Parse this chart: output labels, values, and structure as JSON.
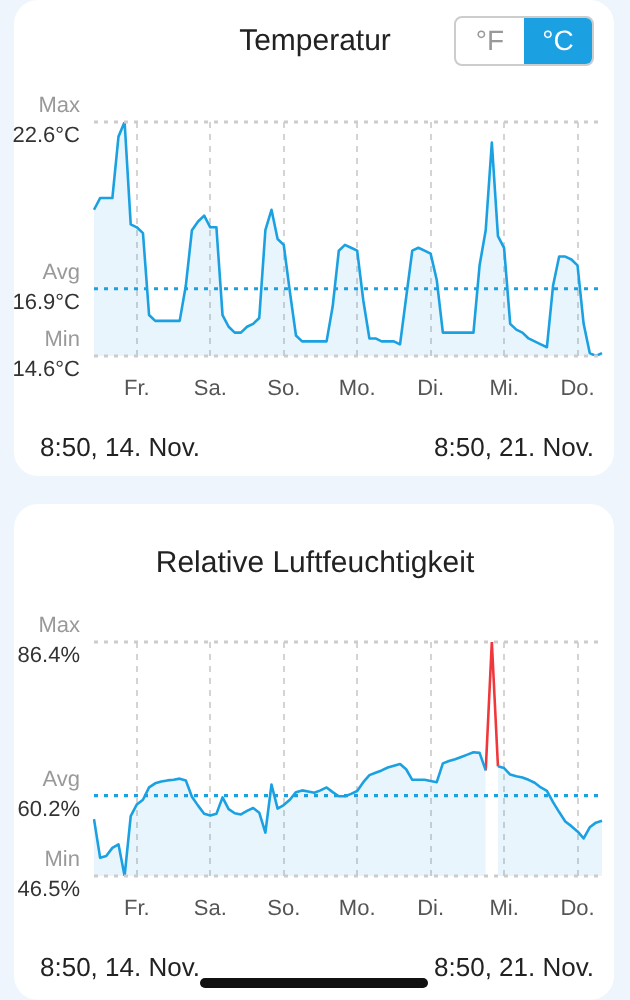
{
  "chart_data": [
    {
      "type": "area",
      "title": "Temperatur",
      "categories": [
        null,
        null,
        null,
        null,
        null,
        null,
        null,
        "Fr.",
        null,
        null,
        null,
        null,
        null,
        null,
        null,
        null,
        null,
        null,
        null,
        "Sa.",
        null,
        null,
        null,
        null,
        null,
        null,
        null,
        null,
        null,
        null,
        null,
        "So.",
        null,
        null,
        null,
        null,
        null,
        null,
        null,
        null,
        null,
        null,
        null,
        "Mo.",
        null,
        null,
        null,
        null,
        null,
        null,
        null,
        null,
        null,
        null,
        null,
        "Di.",
        null,
        null,
        null,
        null,
        null,
        null,
        null,
        null,
        null,
        null,
        null,
        "Mi.",
        null,
        null,
        null,
        null,
        null,
        null,
        null,
        null,
        null,
        null,
        null,
        "Do.",
        null,
        null,
        null,
        null
      ],
      "series": [
        {
          "color": "#1ba1e2",
          "values": [
            19.6,
            20.0,
            20.0,
            20.0,
            22.1,
            22.6,
            19.1,
            19.0,
            18.8,
            16.0,
            15.8,
            15.8,
            15.8,
            15.8,
            15.8,
            17.0,
            18.9,
            19.2,
            19.4,
            19.0,
            19.0,
            16.0,
            15.6,
            15.4,
            15.4,
            15.6,
            15.7,
            15.9,
            18.9,
            19.6,
            18.6,
            18.4,
            16.8,
            15.3,
            15.1,
            15.1,
            15.1,
            15.1,
            15.1,
            16.3,
            18.2,
            18.4,
            18.3,
            18.2,
            16.5,
            15.2,
            15.2,
            15.1,
            15.1,
            15.1,
            15.0,
            16.6,
            18.2,
            18.3,
            18.2,
            18.1,
            17.2,
            15.4,
            15.4,
            15.4,
            15.4,
            15.4,
            15.4,
            17.7,
            18.9,
            21.9,
            18.7,
            18.3,
            15.7,
            15.5,
            15.4,
            15.2,
            15.1,
            15.0,
            14.9,
            17.0,
            18.0,
            18.0,
            17.9,
            17.7,
            15.7,
            14.7,
            14.6,
            14.7
          ]
        }
      ],
      "ylim": [
        14.6,
        22.6
      ],
      "yticks": [
        {
          "value": 14.6,
          "label": "14.6°C"
        },
        {
          "value": 16.9,
          "label": "16.9°C"
        },
        {
          "value": 22.6,
          "label": "22.6°C"
        }
      ],
      "ref_lines": [
        {
          "axis": "y",
          "value": 22.6,
          "label": "Max",
          "color": "#cccccc",
          "line_style": "dotted"
        },
        {
          "axis": "y",
          "value": 16.9,
          "label": "Avg",
          "color": "#1ba1e2",
          "line_style": "dotted"
        },
        {
          "axis": "y",
          "value": 14.6,
          "label": "Min",
          "color": "#cccccc",
          "line_style": "dotted"
        }
      ],
      "grid": "x",
      "annotations": [
        "°F",
        "°C",
        "8:50, 14. Nov.",
        "8:50, 21. Nov."
      ]
    },
    {
      "type": "area",
      "title": "Relative Luftfeuchtigkeit",
      "categories": [
        null,
        null,
        null,
        null,
        null,
        null,
        null,
        "Fr.",
        null,
        null,
        null,
        null,
        null,
        null,
        null,
        null,
        null,
        null,
        null,
        "Sa.",
        null,
        null,
        null,
        null,
        null,
        null,
        null,
        null,
        null,
        null,
        null,
        "So.",
        null,
        null,
        null,
        null,
        null,
        null,
        null,
        null,
        null,
        null,
        null,
        "Mo.",
        null,
        null,
        null,
        null,
        null,
        null,
        null,
        null,
        null,
        null,
        null,
        "Di.",
        null,
        null,
        null,
        null,
        null,
        null,
        null,
        null,
        null,
        null,
        null,
        "Mi.",
        null,
        null,
        null,
        null,
        null,
        null,
        null,
        null,
        null,
        null,
        null,
        "Do.",
        null,
        null,
        null,
        null
      ],
      "series": [
        {
          "color": "#1ba1e2",
          "values": [
            56.2,
            49.6,
            49.9,
            51.3,
            51.9,
            46.5,
            56.7,
            58.7,
            59.5,
            61.6,
            62.3,
            62.6,
            62.8,
            62.9,
            63.1,
            62.8,
            60.0,
            58.5,
            57.1,
            56.8,
            57.1,
            59.9,
            57.9,
            57.2,
            57.0,
            57.6,
            58.1,
            57.3,
            53.9,
            62.1,
            58.0,
            58.6,
            59.5,
            60.8,
            61.1,
            60.9,
            60.7,
            61.1,
            61.6,
            60.8,
            60.1,
            60.1,
            60.5,
            61.0,
            62.5,
            63.7,
            64.1,
            64.5,
            65.0,
            65.3,
            65.6,
            64.7,
            62.9,
            62.9,
            62.9,
            62.7,
            62.5,
            65.7,
            66.1,
            66.4,
            66.8,
            67.2,
            67.6,
            67.5,
            64.5,
            null,
            65.2,
            64.9,
            63.8,
            63.5,
            63.3,
            62.9,
            62.4,
            61.6,
            61.0,
            59.1,
            57.4,
            55.8,
            55.0,
            54.1,
            52.9,
            54.8,
            55.6,
            55.9
          ]
        },
        {
          "type": "line",
          "color": "#f0383c",
          "values": [
            null,
            null,
            null,
            null,
            null,
            null,
            null,
            null,
            null,
            null,
            null,
            null,
            null,
            null,
            null,
            null,
            null,
            null,
            null,
            null,
            null,
            null,
            null,
            null,
            null,
            null,
            null,
            null,
            null,
            null,
            null,
            null,
            null,
            null,
            null,
            null,
            null,
            null,
            null,
            null,
            null,
            null,
            null,
            null,
            null,
            null,
            null,
            null,
            null,
            null,
            null,
            null,
            null,
            null,
            null,
            null,
            null,
            null,
            null,
            null,
            null,
            null,
            null,
            null,
            64.5,
            86.4,
            65.2,
            null,
            null,
            null,
            null,
            null,
            null,
            null,
            null,
            null,
            null,
            null,
            null,
            null,
            null,
            null,
            null,
            null
          ]
        }
      ],
      "ylim": [
        46.5,
        86.4
      ],
      "yticks": [
        {
          "value": 46.5,
          "label": "46.5%"
        },
        {
          "value": 60.2,
          "label": "60.2%"
        },
        {
          "value": 86.4,
          "label": "86.4%"
        }
      ],
      "ref_lines": [
        {
          "axis": "y",
          "value": 86.4,
          "label": "Max",
          "color": "#cccccc",
          "line_style": "dotted"
        },
        {
          "axis": "y",
          "value": 60.2,
          "label": "Avg",
          "color": "#1ba1e2",
          "line_style": "dotted"
        },
        {
          "axis": "y",
          "value": 46.5,
          "label": "Min",
          "color": "#cccccc",
          "line_style": "dotted"
        }
      ],
      "grid": "x",
      "annotations": [
        "8:50, 14. Nov.",
        "8:50, 21. Nov."
      ]
    }
  ]
}
